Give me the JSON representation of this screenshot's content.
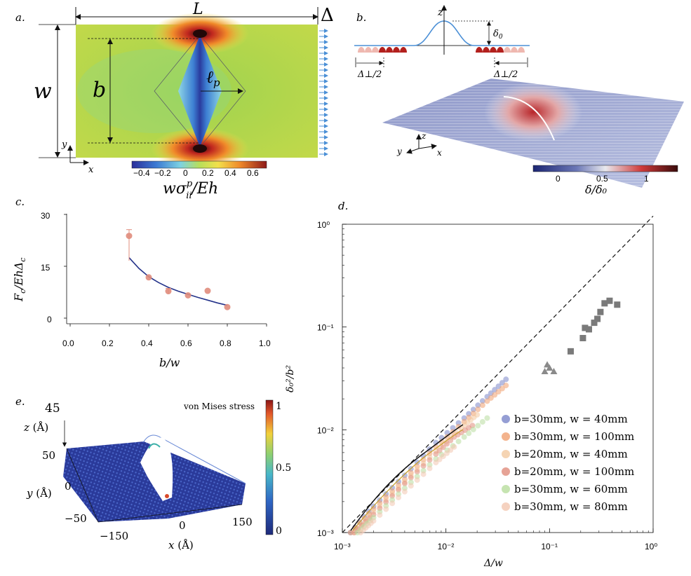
{
  "panels": {
    "a": {
      "label": "a.",
      "dim_L": "L",
      "dim_Delta": "Δ",
      "dim_w": "w",
      "dim_b": "b",
      "dim_lp": "ℓ",
      "dim_lp_sub": "p",
      "axis_y": "y",
      "axis_x": "x",
      "colorbar_ticks": [
        "−0.4",
        "−0.2",
        "0",
        "0.2",
        "0.4",
        "0.6"
      ],
      "colorbar_label_main": "wσ",
      "colorbar_label_sup": "p",
      "colorbar_label_sub": "ii",
      "colorbar_label_tail": "/Eh"
    },
    "b": {
      "label": "b.",
      "axis_z": "z",
      "delta0": "δ",
      "delta0_sub": "0",
      "half_perp_left": "Δ⊥/2",
      "half_perp_right": "Δ⊥/2",
      "axis_y": "y",
      "axis_x": "x",
      "axis_z3": "z",
      "colorbar_ticks": [
        "0",
        "0.5",
        "1"
      ],
      "colorbar_label": "δ/δ₀"
    },
    "c": {
      "label": "c.",
      "ylabel": "F_c/EhΔ_c",
      "xlabel": "b/w"
    },
    "d": {
      "label": "d.",
      "ylabel": "δ₀²/b²",
      "xlabel": "Δ/w",
      "legend": [
        {
          "text": "b=30mm, w = 40mm",
          "color": "#7b86c9"
        },
        {
          "text": "b=30mm, w = 100mm",
          "color": "#f0a070"
        },
        {
          "text": "b=20mm, w = 40mm",
          "color": "#f3c9a0"
        },
        {
          "text": "b=20mm, w = 100mm",
          "color": "#e08c7c"
        },
        {
          "text": "b=30mm, w = 60mm",
          "color": "#b8dd9e"
        },
        {
          "text": "b=30mm, w = 80mm",
          "color": "#f2c7b0"
        }
      ]
    },
    "e": {
      "label": "e.",
      "z_label": "z (Å)",
      "z_tick": "45",
      "y_label": "y (Å)",
      "y_ticks": [
        "50",
        "0",
        "−50"
      ],
      "x_label": "x (Å)",
      "x_ticks": [
        "−150",
        "0",
        "150"
      ],
      "colorbar_title": "von Mises stress",
      "colorbar_ticks": [
        "1",
        "0.5",
        "0"
      ]
    }
  },
  "chart_data": [
    {
      "type": "scatter",
      "panel": "c",
      "title": "",
      "xlabel": "b/w",
      "ylabel": "F_c/EhΔ_c",
      "xlim": [
        0,
        1.0
      ],
      "ylim": [
        0,
        30
      ],
      "xticks": [
        "0.0",
        "0.2",
        "0.4",
        "0.6",
        "0.8",
        "1.0"
      ],
      "yticks": [
        "0",
        "15",
        "30"
      ],
      "points": {
        "x": [
          0.3,
          0.4,
          0.5,
          0.6,
          0.7,
          0.8
        ],
        "y": [
          23.8,
          11.8,
          7.8,
          6.6,
          7.9,
          3.2
        ],
        "err": [
          1.8,
          0,
          0.8,
          0,
          0,
          0
        ]
      },
      "fit": {
        "x": [
          0.3,
          0.35,
          0.4,
          0.45,
          0.5,
          0.55,
          0.6,
          0.65,
          0.7,
          0.75,
          0.8
        ],
        "y": [
          17.5,
          14.4,
          12.0,
          10.3,
          8.9,
          7.8,
          6.9,
          6.0,
          5.2,
          4.4,
          3.7
        ]
      }
    },
    {
      "type": "scatter",
      "panel": "d",
      "title": "",
      "xlabel": "Δ/w",
      "ylabel": "δ₀²/b²",
      "xscale": "log",
      "yscale": "log",
      "xlim": [
        0.001,
        1
      ],
      "ylim": [
        0.001,
        1
      ],
      "xticks": [
        "10⁻³",
        "10⁻²",
        "10⁻¹",
        "10⁰"
      ],
      "yticks": [
        "10⁻³",
        "10⁻²",
        "10⁻¹",
        "10⁰"
      ],
      "reference_line": {
        "style": "dashed",
        "x": [
          0.001,
          1
        ],
        "y": [
          0.001,
          1.2
        ]
      },
      "series": [
        {
          "name": "b=30mm, w = 40mm",
          "x": [
            0.0012,
            0.002,
            0.004,
            0.008,
            0.015,
            0.025,
            0.038
          ],
          "y": [
            0.001,
            0.0018,
            0.0036,
            0.0075,
            0.013,
            0.021,
            0.031
          ]
        },
        {
          "name": "b=30mm, w = 100mm",
          "x": [
            0.0012,
            0.002,
            0.004,
            0.008,
            0.015,
            0.025,
            0.038
          ],
          "y": [
            0.001,
            0.0017,
            0.0033,
            0.0068,
            0.012,
            0.019,
            0.027
          ]
        },
        {
          "name": "b=20mm, w = 40mm",
          "x": [
            0.0013,
            0.002,
            0.004,
            0.008,
            0.014,
            0.02
          ],
          "y": [
            0.001,
            0.0016,
            0.0031,
            0.0062,
            0.0105,
            0.014
          ]
        },
        {
          "name": "b=20mm, w = 100mm",
          "x": [
            0.0013,
            0.002,
            0.004,
            0.008,
            0.012,
            0.018
          ],
          "y": [
            0.001,
            0.0015,
            0.003,
            0.0058,
            0.0085,
            0.011
          ]
        },
        {
          "name": "b=30mm, w = 60mm",
          "x": [
            0.0014,
            0.002,
            0.004,
            0.008,
            0.015,
            0.025
          ],
          "y": [
            0.001,
            0.0014,
            0.0027,
            0.0052,
            0.0085,
            0.013
          ]
        },
        {
          "name": "b=30mm, w = 80mm",
          "x": [
            0.0015,
            0.002,
            0.004,
            0.008,
            0.012
          ],
          "y": [
            0.001,
            0.0013,
            0.0025,
            0.0048,
            0.0068
          ]
        },
        {
          "name": "squares",
          "x": [
            0.16,
            0.21,
            0.22,
            0.24,
            0.27,
            0.29,
            0.31,
            0.34,
            0.38,
            0.45
          ],
          "y": [
            0.058,
            0.078,
            0.098,
            0.095,
            0.11,
            0.12,
            0.14,
            0.17,
            0.18,
            0.165
          ]
        },
        {
          "name": "triangles",
          "x": [
            0.09,
            0.095,
            0.1,
            0.11
          ],
          "y": [
            0.037,
            0.043,
            0.04,
            0.037
          ]
        }
      ]
    }
  ]
}
